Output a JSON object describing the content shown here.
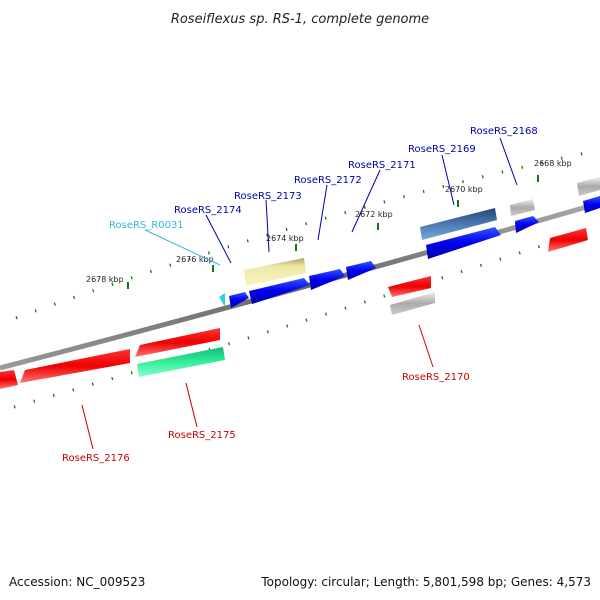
{
  "title": "Roseiflexus sp. RS-1, complete genome",
  "footer": {
    "accession": "Accession: NC_009523",
    "summary": "Topology: circular; Length: 5,801,598 bp; Genes: 4,573"
  },
  "ticks": [
    "2678 kbp",
    "2676 kbp",
    "2674 kbp",
    "2672 kbp",
    "2670 kbp",
    "2668 kbp"
  ],
  "genes": [
    {
      "id": "RoseRS_2168",
      "label": "RoseRS_2168",
      "color": "#0000aa"
    },
    {
      "id": "RoseRS_2169",
      "label": "RoseRS_2169",
      "color": "#0000aa"
    },
    {
      "id": "RoseRS_2170",
      "label": "RoseRS_2170",
      "color": "#cc0000"
    },
    {
      "id": "RoseRS_2171",
      "label": "RoseRS_2171",
      "color": "#0000aa"
    },
    {
      "id": "RoseRS_2172",
      "label": "RoseRS_2172",
      "color": "#0000aa"
    },
    {
      "id": "RoseRS_2173",
      "label": "RoseRS_2173",
      "color": "#0000aa"
    },
    {
      "id": "RoseRS_2174",
      "label": "RoseRS_2174",
      "color": "#0000aa"
    },
    {
      "id": "RoseRS_R0031",
      "label": "RoseRS_R0031",
      "color": "#33bbdd"
    },
    {
      "id": "RoseRS_2175",
      "label": "RoseRS_2175",
      "color": "#cc0000"
    },
    {
      "id": "RoseRS_2176",
      "label": "RoseRS_2176",
      "color": "#cc0000"
    }
  ],
  "colors": {
    "forward_cds": "#0000ee",
    "reverse_cds": "#ee0000",
    "rrna": "#33ccee",
    "backbone": "#888888",
    "tick": "#117711"
  }
}
